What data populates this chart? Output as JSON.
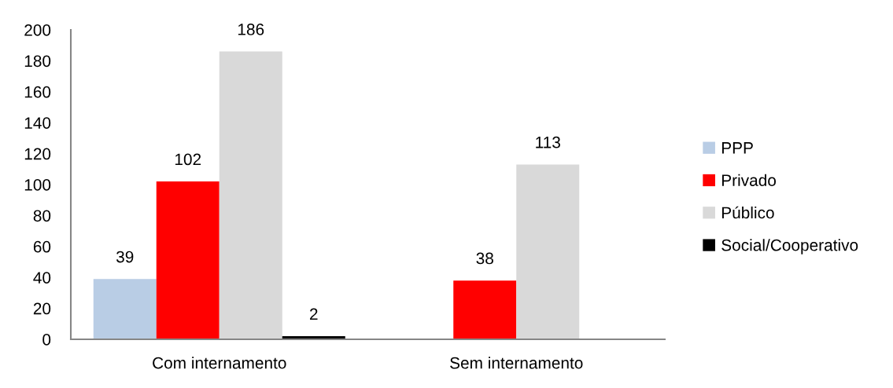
{
  "chart_data": {
    "type": "bar",
    "categories": [
      "Com internamento",
      "Sem internamento"
    ],
    "series": [
      {
        "name": "PPP",
        "color": "#b9cde5",
        "values": [
          39,
          null
        ]
      },
      {
        "name": "Privado",
        "color": "#ff0000",
        "values": [
          102,
          38
        ]
      },
      {
        "name": "Público",
        "color": "#d9d9d9",
        "values": [
          186,
          113
        ]
      },
      {
        "name": "Social/Cooperativo",
        "color": "#000000",
        "values": [
          2,
          null
        ]
      }
    ],
    "ylim": [
      0,
      200
    ],
    "yticks": [
      0,
      20,
      40,
      60,
      80,
      100,
      120,
      140,
      160,
      180,
      200
    ],
    "grid": false,
    "legend": "right",
    "data_labels": true
  }
}
